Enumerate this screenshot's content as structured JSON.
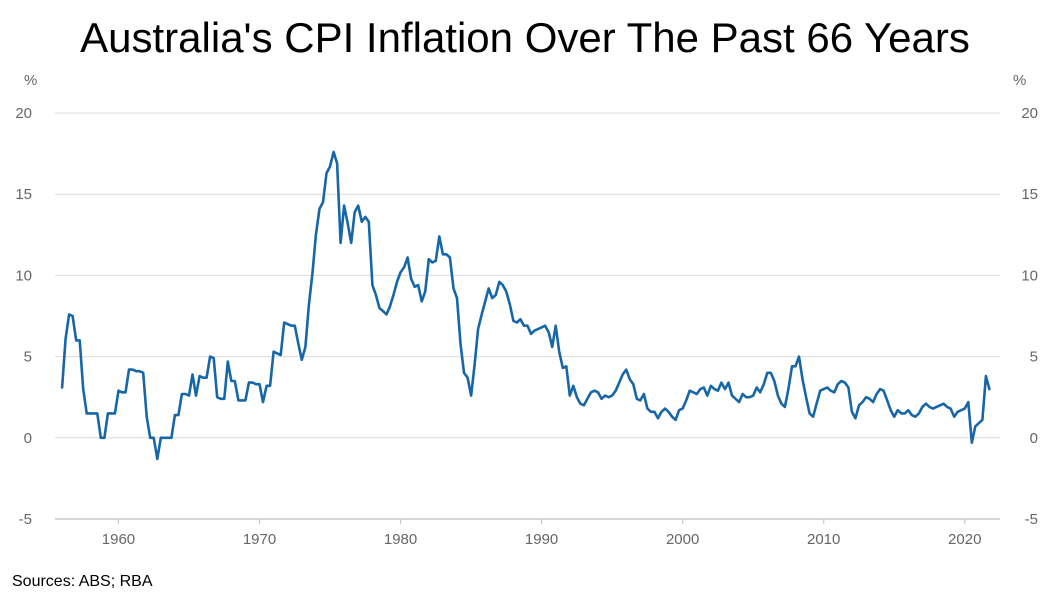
{
  "chart_data": {
    "type": "line",
    "title": "Australia's CPI Inflation Over The Past 66 Years",
    "ylabel_left": "%",
    "ylabel_right": "%",
    "xlim": [
      1955.5,
      2022.5
    ],
    "ylim": [
      -5,
      20
    ],
    "yticks": [
      -5,
      0,
      5,
      10,
      15,
      20
    ],
    "xticks": [
      1960,
      1970,
      1980,
      1990,
      2000,
      2010,
      2020
    ],
    "grid": true,
    "line_color": "#1767a8",
    "series": [
      {
        "x": [
          1956.0,
          1956.25,
          1956.5,
          1956.75,
          1957.0,
          1957.25,
          1957.5,
          1957.75,
          1958.0,
          1958.25,
          1958.5,
          1958.75,
          1959.0,
          1959.25,
          1959.5,
          1959.75,
          1960.0,
          1960.25,
          1960.5,
          1960.75,
          1961.0,
          1961.25,
          1961.5,
          1961.75,
          1962.0,
          1962.25,
          1962.5,
          1962.75,
          1963.0,
          1963.25,
          1963.5,
          1963.75,
          1964.0,
          1964.25,
          1964.5,
          1964.75,
          1965.0,
          1965.25,
          1965.5,
          1965.75,
          1966.0,
          1966.25,
          1966.5,
          1966.75,
          1967.0,
          1967.25,
          1967.5,
          1967.75,
          1968.0,
          1968.25,
          1968.5,
          1968.75,
          1969.0,
          1969.25,
          1969.5,
          1969.75,
          1970.0,
          1970.25,
          1970.5,
          1970.75,
          1971.0,
          1971.25,
          1971.5,
          1971.75,
          1972.0,
          1972.25,
          1972.5,
          1972.75,
          1973.0,
          1973.25,
          1973.5,
          1973.75,
          1974.0,
          1974.25,
          1974.5,
          1974.75,
          1975.0,
          1975.25,
          1975.5,
          1975.75,
          1976.0,
          1976.25,
          1976.5,
          1976.75,
          1977.0,
          1977.25,
          1977.5,
          1977.75,
          1978.0,
          1978.25,
          1978.5,
          1978.75,
          1979.0,
          1979.25,
          1979.5,
          1979.75,
          1980.0,
          1980.25,
          1980.5,
          1980.75,
          1981.0,
          1981.25,
          1981.5,
          1981.75,
          1982.0,
          1982.25,
          1982.5,
          1982.75,
          1983.0,
          1983.25,
          1983.5,
          1983.75,
          1984.0,
          1984.25,
          1984.5,
          1984.75,
          1985.0,
          1985.25,
          1985.5,
          1985.75,
          1986.0,
          1986.25,
          1986.5,
          1986.75,
          1987.0,
          1987.25,
          1987.5,
          1987.75,
          1988.0,
          1988.25,
          1988.5,
          1988.75,
          1989.0,
          1989.25,
          1989.5,
          1989.75,
          1990.0,
          1990.25,
          1990.5,
          1990.75,
          1991.0,
          1991.25,
          1991.5,
          1991.75,
          1992.0,
          1992.25,
          1992.5,
          1992.75,
          1993.0,
          1993.25,
          1993.5,
          1993.75,
          1994.0,
          1994.25,
          1994.5,
          1994.75,
          1995.0,
          1995.25,
          1995.5,
          1995.75,
          1996.0,
          1996.25,
          1996.5,
          1996.75,
          1997.0,
          1997.25,
          1997.5,
          1997.75,
          1998.0,
          1998.25,
          1998.5,
          1998.75,
          1999.0,
          1999.25,
          1999.5,
          1999.75,
          2000.0,
          2000.25,
          2000.5,
          2000.75,
          2001.0,
          2001.25,
          2001.5,
          2001.75,
          2002.0,
          2002.25,
          2002.5,
          2002.75,
          2003.0,
          2003.25,
          2003.5,
          2003.75,
          2004.0,
          2004.25,
          2004.5,
          2004.75,
          2005.0,
          2005.25,
          2005.5,
          2005.75,
          2006.0,
          2006.25,
          2006.5,
          2006.75,
          2007.0,
          2007.25,
          2007.5,
          2007.75,
          2008.0,
          2008.25,
          2008.5,
          2008.75,
          2009.0,
          2009.25,
          2009.5,
          2009.75,
          2010.0,
          2010.25,
          2010.5,
          2010.75,
          2011.0,
          2011.25,
          2011.5,
          2011.75,
          2012.0,
          2012.25,
          2012.5,
          2012.75,
          2013.0,
          2013.25,
          2013.5,
          2013.75,
          2014.0,
          2014.25,
          2014.5,
          2014.75,
          2015.0,
          2015.25,
          2015.5,
          2015.75,
          2016.0,
          2016.25,
          2016.5,
          2016.75,
          2017.0,
          2017.25,
          2017.5,
          2017.75,
          2018.0,
          2018.25,
          2018.5,
          2018.75,
          2019.0,
          2019.25,
          2019.5,
          2019.75,
          2020.0,
          2020.25,
          2020.5,
          2020.75,
          2021.0,
          2021.25,
          2021.5,
          2021.75
        ],
        "y": [
          3.1,
          6.1,
          7.6,
          7.5,
          6.0,
          6.0,
          3.0,
          1.5,
          1.5,
          1.5,
          1.5,
          0.0,
          0.0,
          1.5,
          1.5,
          1.5,
          2.9,
          2.8,
          2.8,
          4.2,
          4.2,
          4.1,
          4.1,
          4.0,
          1.3,
          0.0,
          0.0,
          -1.3,
          0.0,
          0.0,
          0.0,
          0.0,
          1.4,
          1.4,
          2.7,
          2.7,
          2.6,
          3.9,
          2.6,
          3.8,
          3.7,
          3.7,
          5.0,
          4.9,
          2.5,
          2.4,
          2.4,
          4.7,
          3.5,
          3.5,
          2.3,
          2.3,
          2.3,
          3.4,
          3.4,
          3.3,
          3.3,
          2.2,
          3.2,
          3.2,
          5.3,
          5.2,
          5.1,
          7.1,
          7.0,
          6.9,
          6.9,
          5.8,
          4.8,
          5.6,
          8.2,
          10.1,
          12.5,
          14.1,
          14.5,
          16.3,
          16.7,
          17.6,
          16.9,
          12.0,
          14.3,
          13.2,
          12.0,
          13.9,
          14.3,
          13.3,
          13.6,
          13.3,
          9.4,
          8.8,
          8.0,
          7.8,
          7.6,
          8.1,
          8.8,
          9.6,
          10.2,
          10.5,
          11.1,
          9.8,
          9.3,
          9.4,
          8.4,
          9.0,
          11.0,
          10.8,
          10.9,
          12.4,
          11.3,
          11.3,
          11.1,
          9.2,
          8.6,
          5.8,
          4.0,
          3.7,
          2.6,
          4.5,
          6.7,
          7.6,
          8.4,
          9.2,
          8.6,
          8.8,
          9.6,
          9.4,
          9.0,
          8.2,
          7.2,
          7.1,
          7.3,
          6.9,
          6.9,
          6.4,
          6.6,
          6.7,
          6.8,
          6.9,
          6.5,
          5.6,
          6.9,
          5.3,
          4.3,
          4.4,
          2.6,
          3.2,
          2.5,
          2.1,
          2.0,
          2.4,
          2.8,
          2.9,
          2.8,
          2.4,
          2.6,
          2.5,
          2.6,
          2.9,
          3.4,
          3.9,
          4.2,
          3.6,
          3.3,
          2.4,
          2.3,
          2.7,
          1.8,
          1.6,
          1.6,
          1.2,
          1.6,
          1.8,
          1.6,
          1.3,
          1.1,
          1.7,
          1.8,
          2.3,
          2.9,
          2.8,
          2.7,
          3.0,
          3.1,
          2.6,
          3.2,
          3.0,
          2.9,
          3.4,
          3.0,
          3.4,
          2.6,
          2.4,
          2.2,
          2.7,
          2.5,
          2.5,
          2.6,
          3.1,
          2.8,
          3.3,
          4.0,
          4.0,
          3.5,
          2.6,
          2.1,
          1.9,
          3.0,
          4.4,
          4.4,
          5.0,
          3.6,
          2.5,
          1.5,
          1.3,
          2.1,
          2.9,
          3.0,
          3.1,
          2.9,
          2.8,
          3.3,
          3.5,
          3.4,
          3.1,
          1.6,
          1.2,
          2.0,
          2.2,
          2.5,
          2.4,
          2.2,
          2.7,
          3.0,
          2.9,
          2.3,
          1.7,
          1.3,
          1.7,
          1.5,
          1.5,
          1.7,
          1.4,
          1.3,
          1.5,
          1.9,
          2.1,
          1.9,
          1.8,
          1.9,
          2.0,
          2.1,
          1.9,
          1.8,
          1.3,
          1.6,
          1.7,
          1.8,
          2.2,
          -0.3,
          0.7,
          0.9,
          1.1,
          3.8,
          3.0
        ]
      }
    ],
    "source": "Sources: ABS; RBA"
  }
}
